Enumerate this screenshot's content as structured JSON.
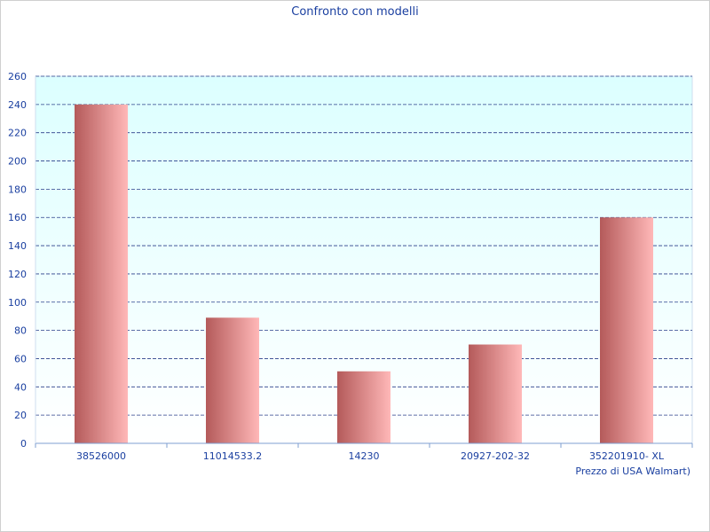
{
  "chart_data": {
    "type": "bar",
    "title": "Confronto con modelli",
    "xlabel": "Prezzo di USA Walmart)",
    "ylabel": "",
    "categories": [
      "38526000",
      "11014533.2",
      "14230",
      "20927-202-32",
      "352201910- XL"
    ],
    "values": [
      240,
      89,
      51,
      70,
      160
    ],
    "ylim": [
      0,
      260
    ],
    "yticks": [
      0,
      20,
      40,
      60,
      80,
      100,
      120,
      140,
      160,
      180,
      200,
      220,
      240,
      260
    ],
    "grid": true,
    "colors": {
      "bar_dark": "#b45a5a",
      "bar_light": "#ffb8b8",
      "plot_bg_top": "#dcffff",
      "plot_bg_bottom": "#ffffff",
      "grid": "#2a3f8a",
      "text": "#1a3fa0",
      "axis": "#7f9fd0"
    }
  }
}
